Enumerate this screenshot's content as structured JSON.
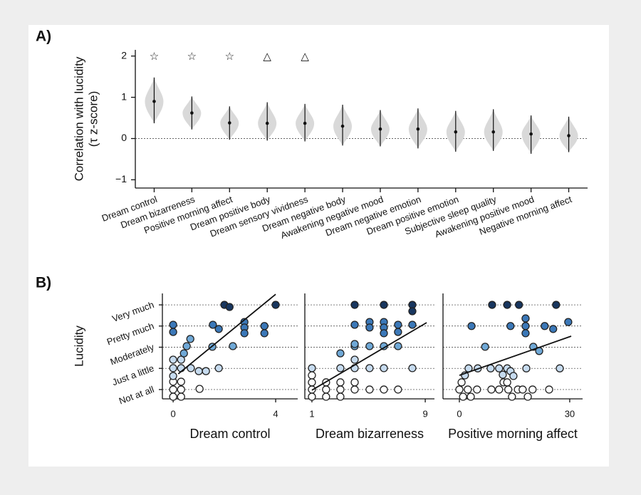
{
  "chart_data": [
    {
      "type": "violin",
      "panel": "A)",
      "ylabel": [
        "Correlation with lucidity",
        "(τ z-score)"
      ],
      "categories": [
        "Dream control",
        "Dream bizarreness",
        "Positive morning affect",
        "Dream positive body",
        "Dream sensory vividness",
        "Dream negative body",
        "Awakening negative mood",
        "Dream negative emotion",
        "Dream positive emotion",
        "Subjective sleep quality",
        "Awakening positive mood",
        "Negative morning affect"
      ],
      "values": [
        0.9,
        0.62,
        0.38,
        0.37,
        0.37,
        0.3,
        0.23,
        0.23,
        0.16,
        0.16,
        0.11,
        0.07
      ],
      "ci_low": [
        0.37,
        0.22,
        -0.03,
        -0.05,
        -0.07,
        -0.17,
        -0.19,
        -0.24,
        -0.32,
        -0.3,
        -0.37,
        -0.33
      ],
      "ci_high": [
        1.48,
        1.02,
        0.78,
        0.88,
        0.84,
        0.82,
        0.69,
        0.73,
        0.67,
        0.71,
        0.56,
        0.53
      ],
      "significance": [
        "☆",
        "☆",
        "☆",
        "△",
        "△"
      ],
      "color": "#d9d9d9",
      "ylim": [
        -1.2,
        2.15
      ],
      "yticks": [
        {
          "value": -1,
          "label": "−1"
        },
        0,
        1,
        2
      ],
      "zero_line": true
    },
    {
      "type": "scatter",
      "panel": "B)",
      "ylabel": "Lucidity",
      "xlabel": "Dream control",
      "xlim": [
        -0.42,
        4.86
      ],
      "xticks": [
        0,
        4
      ],
      "ylim": [
        -0.44,
        4.54
      ],
      "yticks": [
        {
          "value": 0,
          "label": "Not at all"
        },
        {
          "value": 1,
          "label": "Just a little"
        },
        {
          "value": 2,
          "label": "Moderately"
        },
        {
          "value": 3,
          "label": "Pretty much"
        },
        {
          "value": 4,
          "label": "Very much"
        }
      ],
      "show_ytick_labels": true,
      "series": [
        {
          "color": "#ffffff",
          "x": [
            0,
            0.31,
            0,
            0.31,
            0,
            0.31,
            1.03
          ],
          "y": [
            0.37,
            0.37,
            0,
            0,
            -0.34,
            -0.34,
            0.03
          ]
        },
        {
          "color": "#c6dbef",
          "x": [
            0,
            0.31,
            0,
            0.31,
            0,
            0.69,
            1,
            1.28,
            1.78
          ],
          "y": [
            1.41,
            1.41,
            1.01,
            1.01,
            0.64,
            1.01,
            0.87,
            0.87,
            1.01
          ]
        },
        {
          "color": "#6fa8d6",
          "x": [
            0.67,
            0.53,
            0.42,
            1.53,
            2.33
          ],
          "y": [
            2.39,
            2.05,
            1.71,
            2.02,
            2.05
          ]
        },
        {
          "color": "#3b78b8",
          "x": [
            0,
            0,
            1.55,
            1.78,
            2.78,
            2.78,
            2.78,
            3.56,
            3.56
          ],
          "y": [
            3.06,
            2.72,
            3.06,
            2.86,
            3.19,
            2.93,
            2.66,
            3.0,
            2.66
          ]
        },
        {
          "color": "#18365f",
          "x": [
            2.0,
            2.2,
            4.0
          ],
          "y": [
            4,
            3.9,
            4
          ]
        }
      ],
      "fit": {
        "x": [
          0.2,
          4.0
        ],
        "y": [
          0.74,
          4.5
        ]
      }
    },
    {
      "type": "scatter",
      "xlabel": "Dream bizarreness",
      "xlim": [
        0.5,
        9.65
      ],
      "xticks": [
        1,
        9
      ],
      "ylim": [
        -0.44,
        4.54
      ],
      "yticks": [
        0,
        1,
        2,
        3,
        4
      ],
      "show_ytick_labels": false,
      "series": [
        {
          "color": "#ffffff",
          "x": [
            1,
            1,
            1,
            1,
            2.0,
            2.0,
            2.0,
            3.01,
            3.01,
            3.01,
            4.02,
            4.02,
            5.07,
            6.08,
            7.08
          ],
          "y": [
            0.67,
            0.34,
            0,
            -0.34,
            0.34,
            0,
            -0.34,
            0.34,
            0,
            -0.34,
            0.34,
            0,
            0,
            0,
            0
          ]
        },
        {
          "color": "#c6dbef",
          "x": [
            1,
            3.01,
            4.02,
            5.07,
            6.08,
            8.09,
            4.02
          ],
          "y": [
            1.01,
            1.01,
            1.01,
            1.01,
            1.01,
            1.01,
            1.41
          ]
        },
        {
          "color": "#6fa8d6",
          "x": [
            4.02,
            5.07,
            6.08,
            7.08,
            3.01,
            4.02
          ],
          "y": [
            2.05,
            2.05,
            2.05,
            2.05,
            1.71,
            2.15
          ]
        },
        {
          "color": "#3b78b8",
          "x": [
            5.07,
            5.07,
            6.08,
            6.08,
            6.08,
            7.08,
            7.08,
            8.09,
            4.02
          ],
          "y": [
            3.19,
            2.93,
            3.19,
            2.93,
            2.66,
            3.06,
            2.72,
            3.06,
            3.06
          ]
        },
        {
          "color": "#18365f",
          "x": [
            4.02,
            6.08,
            8.09,
            8.09
          ],
          "y": [
            4,
            4,
            4,
            3.7
          ]
        }
      ],
      "fit": {
        "x": [
          1,
          9.1
        ],
        "y": [
          -0.03,
          3.16
        ]
      }
    },
    {
      "type": "scatter",
      "xlabel": "Positive morning affect",
      "xlim": [
        -4.45,
        33.5
      ],
      "xticks": [
        0,
        30
      ],
      "ylim": [
        -0.44,
        4.54
      ],
      "yticks": [
        0,
        1,
        2,
        3,
        4
      ],
      "show_ytick_labels": false,
      "series": [
        {
          "color": "#ffffff",
          "x": [
            0,
            0.6,
            1,
            2.3,
            3.1,
            4.8,
            8.7,
            10.8,
            12,
            13,
            13.3,
            14.3,
            15.9,
            17.2,
            18.6,
            19.9,
            24.4
          ],
          "y": [
            0,
            0.34,
            -0.34,
            0,
            -0.34,
            0,
            0,
            0,
            0.34,
            0.34,
            0,
            -0.34,
            0,
            0,
            -0.34,
            0,
            0
          ]
        },
        {
          "color": "#c6dbef",
          "x": [
            1.5,
            2.5,
            5,
            8.5,
            10.8,
            11.8,
            13,
            13.9,
            14.7,
            18.2,
            27.3
          ],
          "y": [
            0.67,
            1,
            1,
            1,
            1,
            0.7,
            1,
            0.87,
            0.64,
            1,
            1
          ]
        },
        {
          "color": "#6fa8d6",
          "x": [
            7,
            20.1,
            21.7
          ],
          "y": [
            2.02,
            2.02,
            1.82
          ]
        },
        {
          "color": "#3b78b8",
          "x": [
            3.3,
            13.9,
            18,
            18,
            18,
            23.2,
            25.5,
            29.6
          ],
          "y": [
            3,
            3,
            3.36,
            3,
            2.66,
            3,
            2.86,
            3.19
          ]
        },
        {
          "color": "#18365f",
          "x": [
            8.9,
            13,
            16.2,
            26.3
          ],
          "y": [
            4,
            4,
            4,
            4
          ]
        }
      ],
      "fit": {
        "x": [
          0,
          30.4
        ],
        "y": [
          0.67,
          2.52
        ]
      }
    }
  ]
}
